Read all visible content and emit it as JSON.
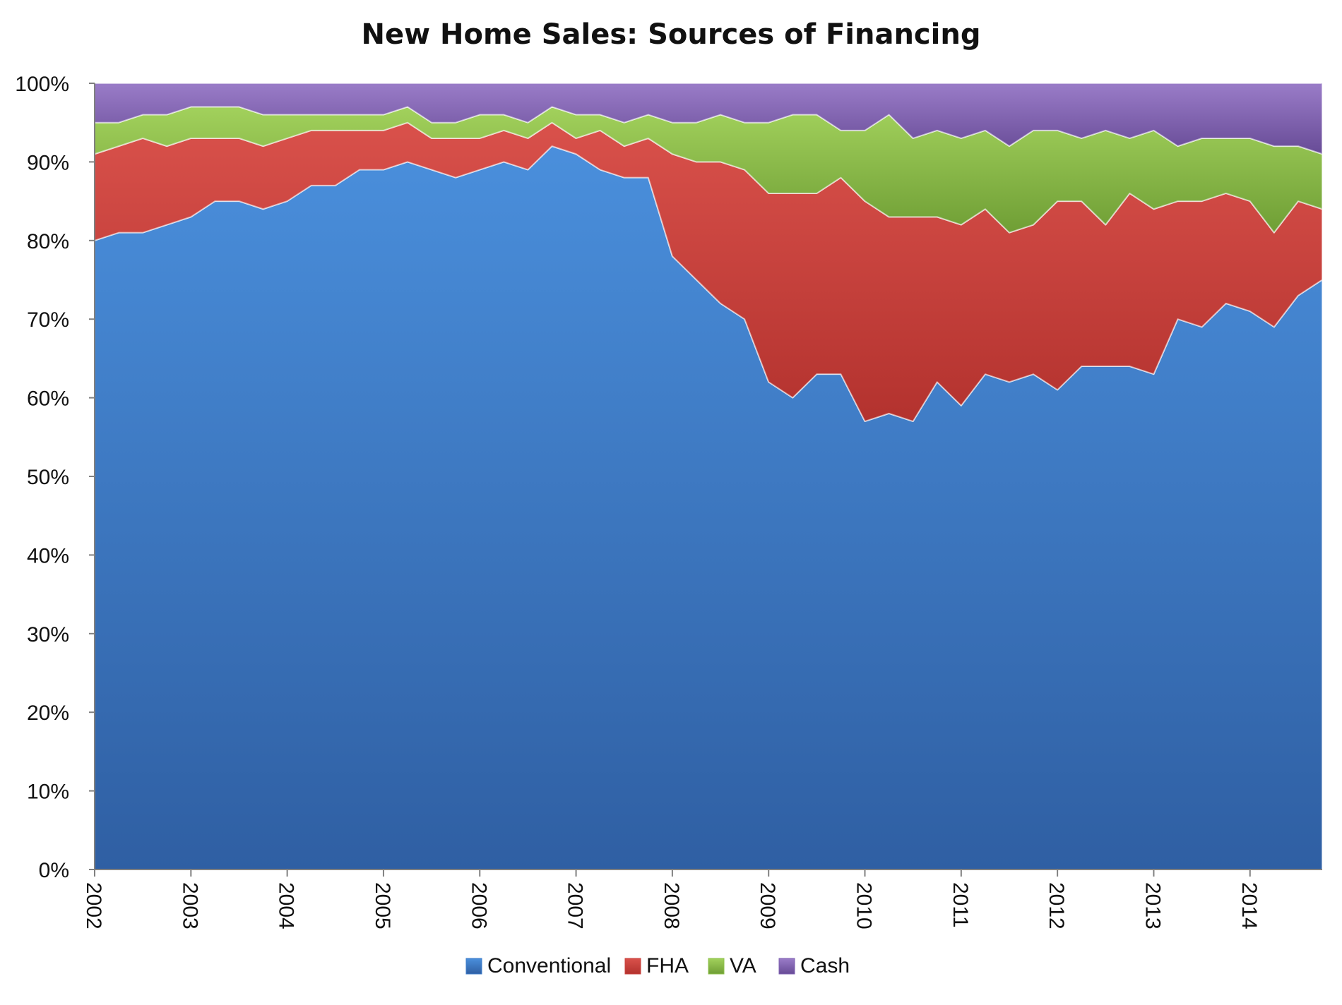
{
  "chart_data": {
    "type": "area",
    "stacked": true,
    "percent_stacked": true,
    "title": "New Home Sales: Sources of Financing",
    "xlabel": "",
    "ylabel": "",
    "ylim": [
      0,
      100
    ],
    "y_ticks": [
      "0%",
      "10%",
      "20%",
      "30%",
      "40%",
      "50%",
      "60%",
      "70%",
      "80%",
      "90%",
      "100%"
    ],
    "x_ticks": [
      "2002",
      "2003",
      "2004",
      "2005",
      "2006",
      "2007",
      "2008",
      "2009",
      "2010",
      "2011",
      "2012",
      "2013",
      "2014"
    ],
    "legend_position": "bottom",
    "grid": false,
    "x": [
      "2002Q1",
      "2002Q2",
      "2002Q3",
      "2002Q4",
      "2003Q1",
      "2003Q2",
      "2003Q3",
      "2003Q4",
      "2004Q1",
      "2004Q2",
      "2004Q3",
      "2004Q4",
      "2005Q1",
      "2005Q2",
      "2005Q3",
      "2005Q4",
      "2006Q1",
      "2006Q2",
      "2006Q3",
      "2006Q4",
      "2007Q1",
      "2007Q2",
      "2007Q3",
      "2007Q4",
      "2008Q1",
      "2008Q2",
      "2008Q3",
      "2008Q4",
      "2009Q1",
      "2009Q2",
      "2009Q3",
      "2009Q4",
      "2010Q1",
      "2010Q2",
      "2010Q3",
      "2010Q4",
      "2011Q1",
      "2011Q2",
      "2011Q3",
      "2011Q4",
      "2012Q1",
      "2012Q2",
      "2012Q3",
      "2012Q4",
      "2013Q1",
      "2013Q2",
      "2013Q3",
      "2013Q4",
      "2014Q1",
      "2014Q2",
      "2014Q3",
      "2014Q4"
    ],
    "series": [
      {
        "name": "Conventional",
        "color": "#3d7cc9",
        "values": [
          80,
          81,
          81,
          82,
          83,
          85,
          85,
          84,
          85,
          87,
          87,
          89,
          89,
          90,
          89,
          88,
          89,
          90,
          89,
          92,
          91,
          89,
          88,
          88,
          78,
          75,
          72,
          70,
          62,
          60,
          63,
          63,
          57,
          58,
          57,
          62,
          59,
          63,
          62,
          63,
          61,
          64,
          64,
          64,
          63,
          70,
          69,
          72,
          71,
          69,
          73,
          75
        ]
      },
      {
        "name": "FHA",
        "color": "#c9413c",
        "values": [
          11,
          11,
          12,
          10,
          10,
          8,
          8,
          8,
          8,
          7,
          7,
          5,
          5,
          5,
          4,
          5,
          4,
          4,
          4,
          3,
          2,
          5,
          4,
          5,
          13,
          15,
          18,
          19,
          24,
          26,
          23,
          25,
          28,
          25,
          26,
          21,
          23,
          21,
          19,
          19,
          24,
          21,
          18,
          22,
          21,
          15,
          16,
          14,
          14,
          12,
          12,
          9
        ]
      },
      {
        "name": "VA",
        "color": "#8dc04a",
        "values": [
          4,
          3,
          3,
          4,
          4,
          4,
          4,
          4,
          3,
          2,
          2,
          2,
          2,
          2,
          2,
          2,
          3,
          2,
          2,
          2,
          3,
          2,
          3,
          3,
          4,
          5,
          6,
          6,
          9,
          10,
          10,
          6,
          9,
          13,
          10,
          11,
          11,
          10,
          11,
          12,
          9,
          8,
          12,
          7,
          10,
          7,
          8,
          7,
          8,
          11,
          7,
          7
        ]
      },
      {
        "name": "Cash",
        "color": "#7e5fb0",
        "values": [
          5,
          5,
          4,
          4,
          3,
          3,
          3,
          4,
          4,
          4,
          4,
          4,
          4,
          3,
          5,
          5,
          4,
          4,
          5,
          3,
          4,
          4,
          5,
          4,
          5,
          5,
          4,
          5,
          5,
          4,
          4,
          6,
          6,
          4,
          7,
          6,
          7,
          6,
          8,
          6,
          6,
          7,
          6,
          7,
          6,
          8,
          7,
          7,
          7,
          8,
          8,
          9
        ]
      }
    ]
  }
}
